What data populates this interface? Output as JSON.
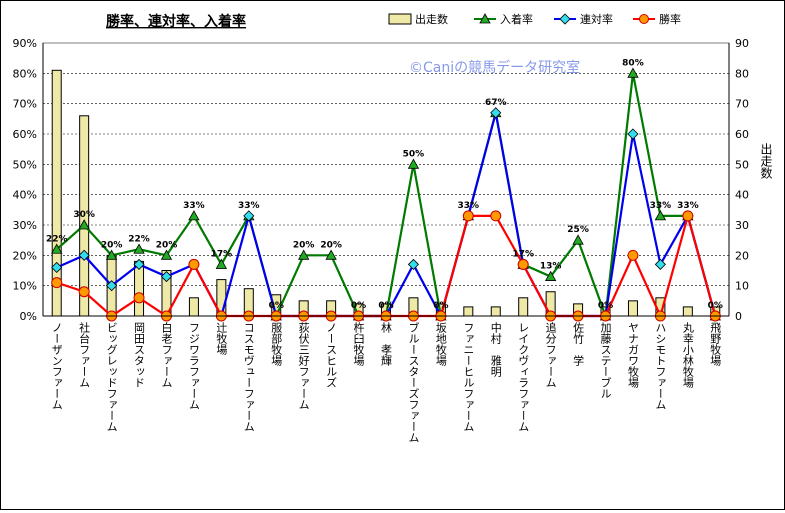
{
  "chart_data": {
    "type": "bar",
    "title": "勝率、連対率、入着率",
    "watermark": "©Caniの競馬データ研究室",
    "ylabel_right": "出走数",
    "ylim_left": [
      0,
      90
    ],
    "ylim_right": [
      0,
      90
    ],
    "left_ticks": [
      "0%",
      "10%",
      "20%",
      "30%",
      "40%",
      "50%",
      "60%",
      "70%",
      "80%",
      "90%"
    ],
    "right_ticks": [
      "0",
      "10",
      "20",
      "30",
      "40",
      "50",
      "60",
      "70",
      "80",
      "90"
    ],
    "grid": true,
    "legend_position": "top-right",
    "categories": [
      "ノーザンファーム",
      "社台ファーム",
      "ビッグレッドファーム",
      "岡田スタッド",
      "白老ファーム",
      "フジワラファーム",
      "辻牧場",
      "コスモヴューファーム",
      "服部牧場",
      "荻伏三好ファーム",
      "ノースヒルズ",
      "杵臼牧場",
      "林　孝輝",
      "ブルースターズファーム",
      "坂地牧場",
      "ファニーヒルファーム",
      "中村　雅明",
      "レイクヴィラファーム",
      "追分ファーム",
      "佐竹　学",
      "加藤ステーブル",
      "ヤナガワ牧場",
      "ハシモトファーム",
      "丸幸小林牧場",
      "飛野牧場"
    ],
    "series": [
      {
        "name": "出走数",
        "kind": "bar",
        "color": "#efe9a8",
        "values": [
          81,
          66,
          20,
          18,
          15,
          6,
          12,
          9,
          7,
          5,
          5,
          4,
          4,
          6,
          4,
          3,
          3,
          6,
          8,
          4,
          3,
          5,
          6,
          3,
          3
        ]
      },
      {
        "name": "入着率",
        "kind": "line",
        "color": "#007a00",
        "values": [
          22,
          30,
          20,
          22,
          20,
          33,
          17,
          33,
          0,
          20,
          20,
          0,
          0,
          50,
          0,
          33,
          67,
          17,
          13,
          25,
          0,
          80,
          33,
          33,
          0
        ]
      },
      {
        "name": "連対率",
        "kind": "line",
        "color": "#0000ee",
        "values": [
          16,
          20,
          10,
          17,
          13,
          17,
          0,
          33,
          0,
          0,
          0,
          0,
          0,
          17,
          0,
          33,
          67,
          17,
          0,
          0,
          0,
          60,
          17,
          33,
          0
        ]
      },
      {
        "name": "勝率",
        "kind": "line",
        "color": "#ff0000",
        "values": [
          11,
          8,
          0,
          6,
          0,
          17,
          0,
          0,
          0,
          0,
          0,
          0,
          0,
          0,
          0,
          33,
          33,
          17,
          0,
          0,
          0,
          20,
          0,
          33,
          0
        ]
      }
    ],
    "data_labels": [
      "22%",
      "30%",
      "20%",
      "22%",
      "20%",
      "33%",
      "17%",
      "33%",
      "0%",
      "20%",
      "20%",
      "0%",
      "0%",
      "50%",
      "0%",
      "33%",
      "67%",
      "17%",
      "13%",
      "25%",
      "0%",
      "80%",
      "33%",
      "33%",
      "0%"
    ]
  }
}
